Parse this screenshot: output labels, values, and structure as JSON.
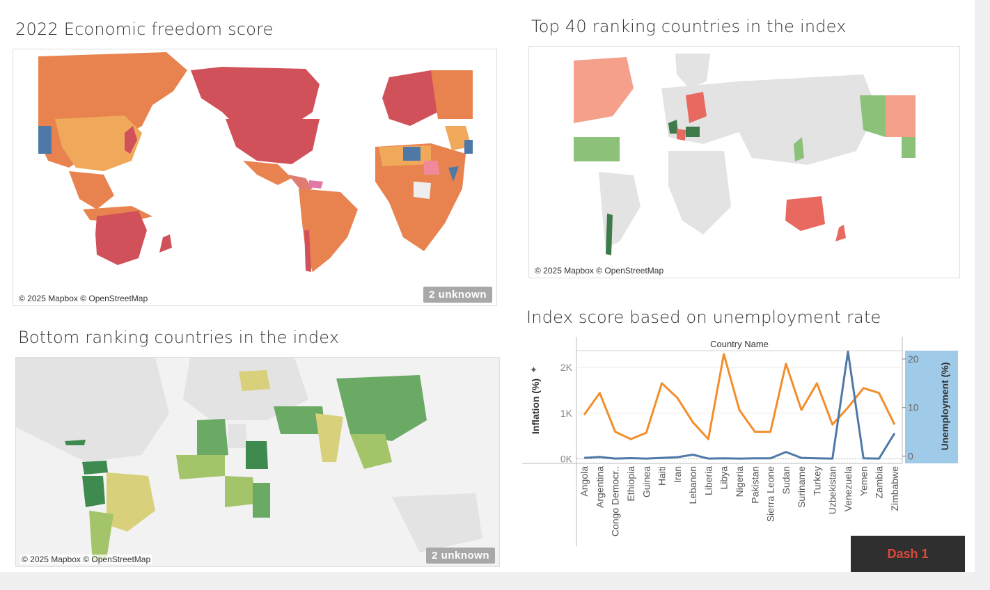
{
  "dashboard": {
    "titles": {
      "economic_freedom": "2022 Economic freedom score",
      "top40": "Top 40 ranking countries in the index",
      "bottom": "Bottom ranking countries in the index",
      "unemployment": "Index score based on unemployment rate"
    },
    "map_credit": "© 2025 Mapbox © OpenStreetMap",
    "unknown_badge": "2 unknown",
    "dash_button": "Dash 1"
  },
  "colors": {
    "inflation_line": "#f28e2b",
    "unemployment_line": "#4e79a7",
    "unemployment_axis_highlight": "#a0cbe8",
    "dash_button_text": "#e0483b",
    "map_high": "#d1515a",
    "map_mid": "#e8834f",
    "map_low": "#f0a85a",
    "map_blue": "#4e79a7",
    "top40_red": "#e8695f",
    "top40_salmon": "#f4a08a",
    "top40_green": "#8cc17a",
    "top40_dark_green": "#3f7a4a",
    "bottom_dark_green": "#3f8a4f",
    "bottom_green": "#6aaa64",
    "bottom_light_green": "#a4c46a",
    "bottom_yellow": "#d8d07a",
    "map_grey": "#e3e3e3"
  },
  "chart_data": {
    "type": "line",
    "header": "Country Name",
    "categories": [
      "Angola",
      "Argentina",
      "Congo Democr..",
      "Ethiopia",
      "Guinea",
      "Haiti",
      "Iran",
      "Lebanon",
      "Liberia",
      "Libya",
      "Nigeria",
      "Pakistan",
      "Sierra Leone",
      "Sudan",
      "Suriname",
      "Turkey",
      "Uzbekistan",
      "Venezuela",
      "Yemen",
      "Zambia",
      "Zimbabwe"
    ],
    "left_axis": {
      "label": "Inflation (%)",
      "ticks": [
        "2K",
        "1K",
        "0K"
      ],
      "ylim": [
        -100,
        2400
      ]
    },
    "right_axis": {
      "label": "Unemployment (%)",
      "ticks": [
        "20",
        "10",
        "0"
      ],
      "ylim": [
        -1.5,
        22
      ]
    },
    "series": [
      {
        "name": "Unemployment (%)",
        "axis": "right",
        "values": [
          8.5,
          13.0,
          5.0,
          3.5,
          4.8,
          15.0,
          12.0,
          7.0,
          3.5,
          21.0,
          9.5,
          5.0,
          5.0,
          19.0,
          9.5,
          15.0,
          6.5,
          10.0,
          14.0,
          13.0,
          6.5
        ]
      },
      {
        "name": "Inflation (%)",
        "axis": "left",
        "values": [
          20,
          40,
          5,
          15,
          5,
          20,
          35,
          90,
          5,
          10,
          5,
          10,
          10,
          150,
          20,
          10,
          5,
          2350,
          10,
          5,
          560
        ]
      }
    ]
  }
}
